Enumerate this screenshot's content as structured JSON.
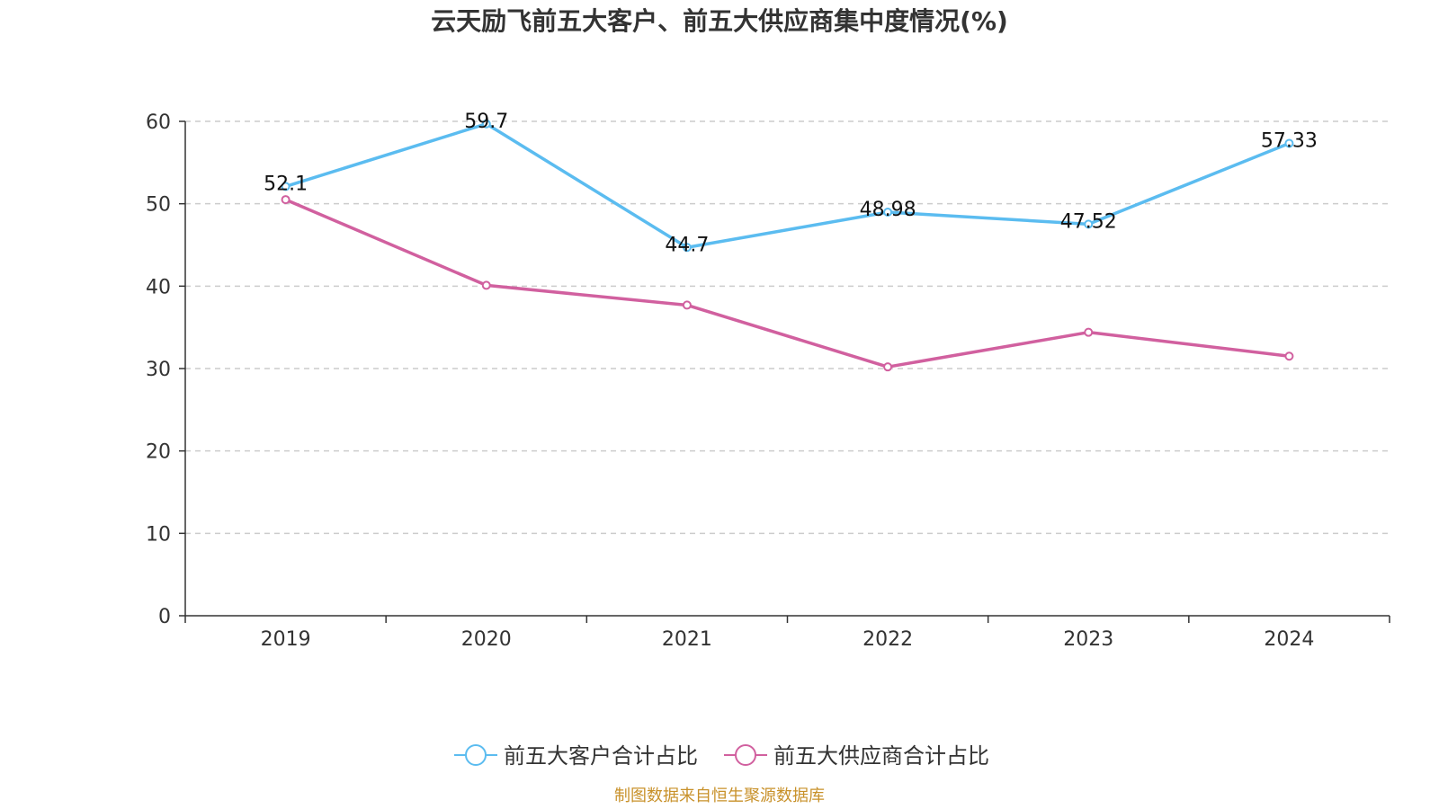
{
  "chart_data": {
    "type": "line",
    "title": "云天励飞前五大客户、前五大供应商集中度情况(%)",
    "categories": [
      "2019",
      "2020",
      "2021",
      "2022",
      "2023",
      "2024"
    ],
    "ylim": [
      0,
      60
    ],
    "yticks": [
      "0",
      "10",
      "20",
      "30",
      "40",
      "50",
      "60"
    ],
    "grid": true,
    "legend_position": "bottom",
    "series": [
      {
        "name": "前五大客户合计占比",
        "color": "#5bbcf0",
        "values": [
          52.1,
          59.7,
          44.7,
          48.98,
          47.52,
          57.33
        ],
        "labels": [
          "52.1",
          "59.7",
          "44.7",
          "48.98",
          "47.52",
          "57.33"
        ]
      },
      {
        "name": "前五大供应商合计占比",
        "color": "#d1609f",
        "values": [
          50.5,
          40.1,
          37.7,
          30.2,
          34.4,
          31.5
        ]
      }
    ]
  },
  "footer": {
    "source": "制图数据来自恒生聚源数据库"
  }
}
